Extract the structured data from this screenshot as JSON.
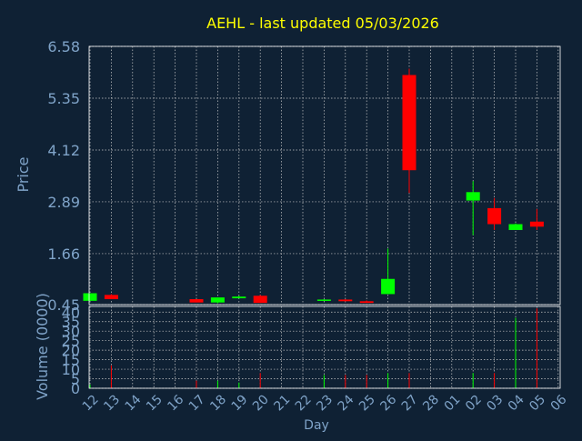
{
  "background": "#0f2134",
  "colors": {
    "title": "#ffff00",
    "axis_text": "#7fa3c8",
    "grid": "#c8c8c8",
    "frame": "#ffffff",
    "up": "#00ff00",
    "down": "#ff0000"
  },
  "chart_data": {
    "type": "candlestick",
    "title": "AEHL - last updated 05/03/2026",
    "xlabel": "Day",
    "ylabel": "Price",
    "volume_label": "Volume (0000)",
    "grid": true,
    "price_ylim": [
      0.45,
      6.58
    ],
    "price_ticks": [
      "0.45",
      "1.66",
      "2.89",
      "4.12",
      "5.35",
      "6.58"
    ],
    "volume_ylim": [
      0,
      43
    ],
    "volume_ticks": [
      "0",
      "5",
      "10",
      "15",
      "20",
      "25",
      "30",
      "35",
      "40"
    ],
    "x_labels": [
      "12",
      "13",
      "14",
      "15",
      "16",
      "17",
      "18",
      "19",
      "20",
      "21",
      "22",
      "23",
      "24",
      "25",
      "26",
      "27",
      "28",
      "01",
      "02",
      "03",
      "04",
      "05",
      "06"
    ],
    "candles": [
      {
        "day": "12",
        "open": 0.54,
        "high": 0.72,
        "low": 0.54,
        "close": 0.72,
        "volume": 2
      },
      {
        "day": "13",
        "open": 0.68,
        "high": 0.7,
        "low": 0.58,
        "close": 0.58,
        "volume": 12
      },
      {
        "day": "17",
        "open": 0.58,
        "high": 0.58,
        "low": 0.5,
        "close": 0.5,
        "volume": 4
      },
      {
        "day": "18",
        "open": 0.5,
        "high": 0.62,
        "low": 0.48,
        "close": 0.62,
        "volume": 4
      },
      {
        "day": "19",
        "open": 0.6,
        "high": 0.66,
        "low": 0.6,
        "close": 0.64,
        "volume": 3
      },
      {
        "day": "20",
        "open": 0.66,
        "high": 0.68,
        "low": 0.49,
        "close": 0.49,
        "volume": 8
      },
      {
        "day": "23",
        "open": 0.54,
        "high": 0.58,
        "low": 0.54,
        "close": 0.57,
        "volume": 7
      },
      {
        "day": "24",
        "open": 0.57,
        "high": 0.58,
        "low": 0.53,
        "close": 0.53,
        "volume": 7
      },
      {
        "day": "25",
        "open": 0.53,
        "high": 0.55,
        "low": 0.49,
        "close": 0.49,
        "volume": 7
      },
      {
        "day": "26",
        "open": 0.7,
        "high": 1.78,
        "low": 0.7,
        "close": 1.06,
        "volume": 8
      },
      {
        "day": "27",
        "open": 5.9,
        "high": 6.05,
        "low": 3.1,
        "close": 3.64,
        "volume": 8
      },
      {
        "day": "02",
        "open": 2.92,
        "high": 3.38,
        "low": 2.1,
        "close": 3.12,
        "volume": 8
      },
      {
        "day": "03",
        "open": 2.74,
        "high": 2.98,
        "low": 2.22,
        "close": 2.36,
        "volume": 8
      },
      {
        "day": "04",
        "open": 2.22,
        "high": 2.38,
        "low": 2.22,
        "close": 2.36,
        "volume": 37
      },
      {
        "day": "05",
        "open": 2.42,
        "high": 2.72,
        "low": 2.22,
        "close": 2.3,
        "volume": 42
      }
    ]
  }
}
